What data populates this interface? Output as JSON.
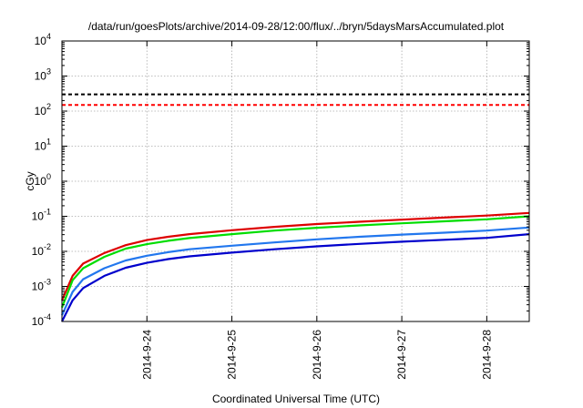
{
  "chart_data": {
    "type": "line",
    "title": "/data/run/goesPlots/archive/2014-09-28/12:00/flux/../bryn/5daysMarsAccumulated.plot",
    "xlabel": "Coordinated Universal Time (UTC)",
    "ylabel": "cGy",
    "yscale": "log",
    "ylim": [
      0.0001,
      10000
    ],
    "y_ticks": [
      {
        "value": 0.0001,
        "base": "10",
        "exp": "-4"
      },
      {
        "value": 0.001,
        "base": "10",
        "exp": "-3"
      },
      {
        "value": 0.01,
        "base": "10",
        "exp": "-2"
      },
      {
        "value": 0.1,
        "base": "10",
        "exp": "-1"
      },
      {
        "value": 1,
        "base": "10",
        "exp": "0"
      },
      {
        "value": 10,
        "base": "10",
        "exp": "1"
      },
      {
        "value": 100,
        "base": "10",
        "exp": "2"
      },
      {
        "value": 1000,
        "base": "10",
        "exp": "3"
      },
      {
        "value": 10000,
        "base": "10",
        "exp": "4"
      }
    ],
    "xlim": [
      "2014-09-23 00:00",
      "2014-09-28 12:00"
    ],
    "x_ticks": [
      "2014-9-24",
      "2014-9-25",
      "2014-9-26",
      "2014-9-27",
      "2014-9-28"
    ],
    "x_tick_dates": [
      "2014-09-24",
      "2014-09-25",
      "2014-09-26",
      "2014-09-27",
      "2014-09-28"
    ],
    "grid": true,
    "thresholds": [
      {
        "value": 300,
        "color": "#000000",
        "style": "dashed"
      },
      {
        "value": 150,
        "color": "#ff0000",
        "style": "dashed"
      }
    ],
    "x": [
      "2014-09-23 00:00",
      "2014-09-23 03:00",
      "2014-09-23 06:00",
      "2014-09-23 12:00",
      "2014-09-23 18:00",
      "2014-09-24 00:00",
      "2014-09-24 06:00",
      "2014-09-24 12:00",
      "2014-09-25 00:00",
      "2014-09-25 12:00",
      "2014-09-26 00:00",
      "2014-09-26 12:00",
      "2014-09-27 00:00",
      "2014-09-27 12:00",
      "2014-09-28 00:00",
      "2014-09-28 12:00"
    ],
    "series": [
      {
        "color": "#dd0000",
        "values": [
          0.0004,
          0.002,
          0.0045,
          0.009,
          0.015,
          0.021,
          0.026,
          0.031,
          0.04,
          0.05,
          0.06,
          0.07,
          0.08,
          0.092,
          0.105,
          0.125
        ]
      },
      {
        "color": "#00dd00",
        "values": [
          0.00025,
          0.0015,
          0.0033,
          0.007,
          0.012,
          0.016,
          0.02,
          0.024,
          0.031,
          0.039,
          0.047,
          0.055,
          0.063,
          0.072,
          0.082,
          0.1
        ]
      },
      {
        "color": "#2277ee",
        "values": [
          0.00015,
          0.0007,
          0.0016,
          0.0033,
          0.0055,
          0.0075,
          0.0095,
          0.0115,
          0.0145,
          0.018,
          0.022,
          0.026,
          0.03,
          0.034,
          0.039,
          0.048
        ]
      },
      {
        "color": "#0000cc",
        "values": [
          0.0001,
          0.0004,
          0.0009,
          0.002,
          0.0034,
          0.0047,
          0.006,
          0.0072,
          0.0092,
          0.0115,
          0.0139,
          0.0163,
          0.0188,
          0.0214,
          0.0242,
          0.031
        ]
      }
    ]
  }
}
